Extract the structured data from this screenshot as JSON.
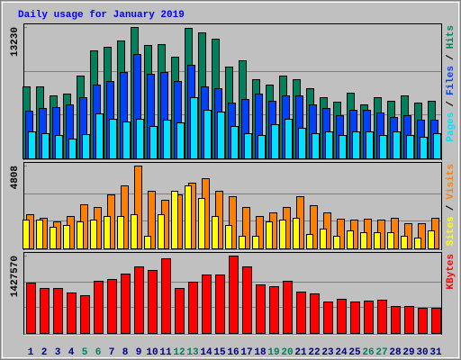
{
  "chart_data": {
    "type": "bar",
    "title": "Daily usage for January 2019",
    "categories": [
      "1",
      "2",
      "3",
      "4",
      "5",
      "6",
      "7",
      "8",
      "9",
      "10",
      "11",
      "12",
      "13",
      "14",
      "15",
      "16",
      "17",
      "18",
      "19",
      "20",
      "21",
      "22",
      "23",
      "24",
      "25",
      "26",
      "27",
      "28",
      "29",
      "30",
      "31"
    ],
    "category_colors": [
      "#000080",
      "#000080",
      "#000080",
      "#000080",
      "#00805c",
      "#00805c",
      "#000080",
      "#000080",
      "#000080",
      "#000080",
      "#000080",
      "#00805c",
      "#00805c",
      "#000080",
      "#000080",
      "#000080",
      "#000080",
      "#000080",
      "#00805c",
      "#00805c",
      "#000080",
      "#000080",
      "#000080",
      "#000080",
      "#000080",
      "#00805c",
      "#00805c",
      "#000080",
      "#000080",
      "#000080",
      "#000080"
    ],
    "legend_separator": "/",
    "panels": [
      {
        "ylim": [
          0,
          13230
        ],
        "yticks": [
          13230
        ],
        "series": [
          {
            "name": "Hits",
            "color": "#00805c",
            "values": [
              7250,
              7250,
              6340,
              6520,
              8340,
              10870,
              11230,
              11870,
              13230,
              11420,
              11510,
              10240,
              13100,
              12690,
              12050,
              9240,
              9880,
              7970,
              7430,
              8340,
              7970,
              7070,
              6160,
              5710,
              6610,
              5440,
              6160,
              5800,
              6340,
              5620,
              5800
            ]
          },
          {
            "name": "Files",
            "color": "#0040ff",
            "values": [
              4800,
              5070,
              5160,
              5440,
              6160,
              7430,
              7790,
              8700,
              10510,
              8520,
              8700,
              7790,
              9420,
              7250,
              7070,
              5620,
              5980,
              6520,
              5800,
              6340,
              6340,
              5440,
              5070,
              4350,
              4890,
              4890,
              4620,
              4170,
              4350,
              3900,
              3900
            ]
          },
          {
            "name": "Pages",
            "color": "#00e0ff",
            "values": [
              2720,
              2540,
              2360,
              1990,
              2450,
              4530,
              3990,
              3710,
              3990,
              3260,
              3900,
              3620,
              6160,
              4890,
              4710,
              3260,
              2540,
              2360,
              3440,
              3990,
              3080,
              2540,
              2720,
              2360,
              2720,
              2720,
              2360,
              2720,
              2360,
              2170,
              2540
            ]
          }
        ]
      },
      {
        "ylim": [
          0,
          4808
        ],
        "yticks": [
          4808
        ],
        "series": [
          {
            "name": "Visits",
            "color": "#ff8000",
            "values": [
              1990,
              1780,
              1570,
              1880,
              2560,
              2410,
              3140,
              3660,
              4808,
              3350,
              2820,
              3140,
              3820,
              4080,
              3350,
              3030,
              2410,
              1880,
              2090,
              2410,
              3030,
              2510,
              2090,
              1730,
              1670,
              1730,
              1670,
              1780,
              1460,
              1460,
              1780
            ]
          },
          {
            "name": "Sites",
            "color": "#ffff00",
            "values": [
              1670,
              1670,
              1260,
              1360,
              1570,
              1670,
              1880,
              1880,
              1990,
              730,
              1990,
              3350,
              3660,
              2930,
              1880,
              1360,
              730,
              730,
              1570,
              1670,
              1780,
              840,
              1150,
              730,
              1050,
              940,
              940,
              940,
              730,
              630,
              1050
            ]
          }
        ]
      },
      {
        "ylim": [
          0,
          1427570
        ],
        "yticks": [
          1427570
        ],
        "series": [
          {
            "name": "KBytes",
            "color": "#ff0000",
            "values": [
              930000,
              830000,
              830000,
              747000,
              697000,
              963000,
              996000,
              1096000,
              1228000,
              1162000,
              1378000,
              830000,
              946000,
              1079000,
              1079000,
              1427570,
              1228000,
              896000,
              863000,
              963000,
              764000,
              730000,
              581000,
              631000,
              581000,
              598000,
              614000,
              498000,
              498000,
              465000,
              465000
            ]
          }
        ]
      }
    ]
  }
}
